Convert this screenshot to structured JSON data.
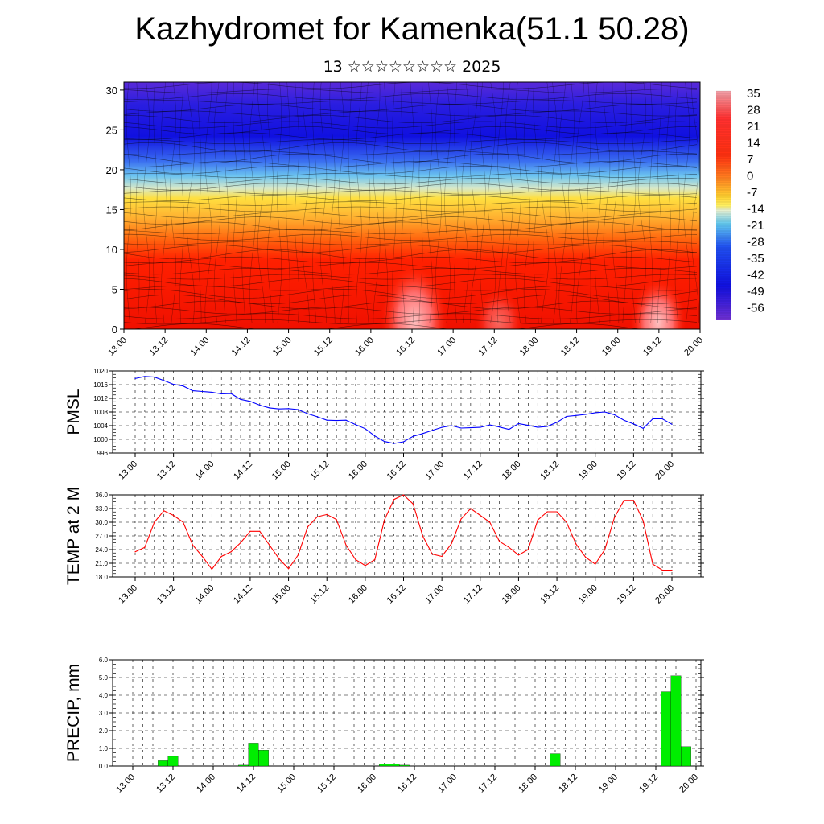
{
  "title": "Kazhydromet for Kamenka(51.1 50.28)",
  "subtitle": "13 ☆☆☆☆☆☆☆☆ 2025",
  "colorbar_labels": [
    "35",
    "28",
    "21",
    "14",
    "7",
    "0",
    "-7",
    "-14",
    "-21",
    "-28",
    "-35",
    "-42",
    "-49",
    "-56"
  ],
  "chart_data": [
    {
      "type": "heatmap",
      "title": "",
      "xlabel": "",
      "ylabel": "",
      "x_ticks": [
        "13.00",
        "13.12",
        "14.00",
        "14.12",
        "15.00",
        "15.12",
        "16.00",
        "16.12",
        "17.00",
        "17.12",
        "18.00",
        "18.12",
        "19.00",
        "19.12",
        "20.00"
      ],
      "y_ticks": [
        "0",
        "5",
        "10",
        "15",
        "20",
        "25",
        "30"
      ],
      "ylim": [
        0,
        31
      ],
      "colorbar_range": [
        -60,
        38
      ],
      "overlay": "wind streamlines / barbs",
      "surface_temperature_approx": [
        24,
        30,
        24,
        30,
        24,
        30,
        28,
        37,
        28,
        31,
        28,
        31,
        28,
        36,
        28
      ]
    },
    {
      "type": "line",
      "ylabel": "PMSL",
      "x_ticks": [
        "13.00",
        "13.12",
        "14.00",
        "14.12",
        "15.00",
        "15.12",
        "16.00",
        "16.12",
        "17.00",
        "17.12",
        "18.00",
        "18.12",
        "19.00",
        "19.12",
        "20.00"
      ],
      "y_ticks": [
        "1020",
        "1016",
        "1012",
        "1008",
        "1004",
        "1000",
        "996"
      ],
      "ylim": [
        996,
        1020
      ],
      "color": "#0000ff",
      "values": [
        1017.8,
        1018.4,
        1018.2,
        1017.2,
        1016.1,
        1015.6,
        1014.2,
        1014.0,
        1013.8,
        1013.3,
        1013.4,
        1011.7,
        1011.1,
        1010.0,
        1009.2,
        1008.9,
        1009.0,
        1008.7,
        1007.5,
        1006.6,
        1005.6,
        1005.5,
        1005.6,
        1004.3,
        1003.1,
        1001.0,
        999.4,
        998.8,
        999.3,
        1000.9,
        1001.7,
        1002.6,
        1003.5,
        1004.0,
        1003.3,
        1003.4,
        1003.5,
        1004.2,
        1003.6,
        1002.9,
        1004.6,
        1004.1,
        1003.5,
        1003.8,
        1005.0,
        1006.7,
        1007.0,
        1007.3,
        1007.8,
        1008.0,
        1007.2,
        1005.6,
        1004.5,
        1003.2,
        1006.0,
        1006.0,
        1004.4
      ]
    },
    {
      "type": "line",
      "ylabel": "TEMP at 2 M",
      "x_ticks": [
        "13.00",
        "13.12",
        "14.00",
        "14.12",
        "15.00",
        "15.12",
        "16.00",
        "16.12",
        "17.00",
        "17.12",
        "18.00",
        "18.12",
        "19.00",
        "19.12",
        "20.00"
      ],
      "y_ticks": [
        "36.0",
        "33.0",
        "30.0",
        "27.0",
        "24.0",
        "21.0",
        "18.0"
      ],
      "ylim": [
        18,
        36
      ],
      "color": "#ff0000",
      "values": [
        23.5,
        24.5,
        30.0,
        32.5,
        31.5,
        30.0,
        25.0,
        22.5,
        19.7,
        22.5,
        23.5,
        25.5,
        28.0,
        28.0,
        25.0,
        22.0,
        19.8,
        22.8,
        29.0,
        31.2,
        31.7,
        30.6,
        25.0,
        21.8,
        20.5,
        21.8,
        30.5,
        35.0,
        36.0,
        34.0,
        27.0,
        23.0,
        22.5,
        25.3,
        30.7,
        33.0,
        31.5,
        30.0,
        25.8,
        24.5,
        22.8,
        24.0,
        30.5,
        32.3,
        32.3,
        30.0,
        25.2,
        22.3,
        20.8,
        24.0,
        31.0,
        34.8,
        34.8,
        30.3,
        20.8,
        19.5,
        19.5
      ]
    },
    {
      "type": "bar",
      "ylabel": "PRECIP, mm",
      "x_ticks": [
        "13.00",
        "13.12",
        "14.00",
        "14.12",
        "15.00",
        "15.12",
        "16.00",
        "16.12",
        "17.00",
        "17.12",
        "18.00",
        "18.12",
        "19.00",
        "19.12",
        "20.00"
      ],
      "y_ticks": [
        "6.0",
        "5.0",
        "4.0",
        "3.0",
        "2.0",
        "1.0",
        "0.0"
      ],
      "ylim": [
        0,
        6
      ],
      "color": "#00ee00",
      "bars": [
        {
          "x": 3,
          "value": 0.3
        },
        {
          "x": 4,
          "value": 0.55
        },
        {
          "x": 11,
          "value": 0.05
        },
        {
          "x": 12,
          "value": 1.3
        },
        {
          "x": 13,
          "value": 0.9
        },
        {
          "x": 25,
          "value": 0.1
        },
        {
          "x": 26,
          "value": 0.1
        },
        {
          "x": 27,
          "value": 0.05
        },
        {
          "x": 42,
          "value": 0.7
        },
        {
          "x": 53,
          "value": 4.2
        },
        {
          "x": 54,
          "value": 5.1
        },
        {
          "x": 55,
          "value": 1.1
        }
      ]
    }
  ]
}
